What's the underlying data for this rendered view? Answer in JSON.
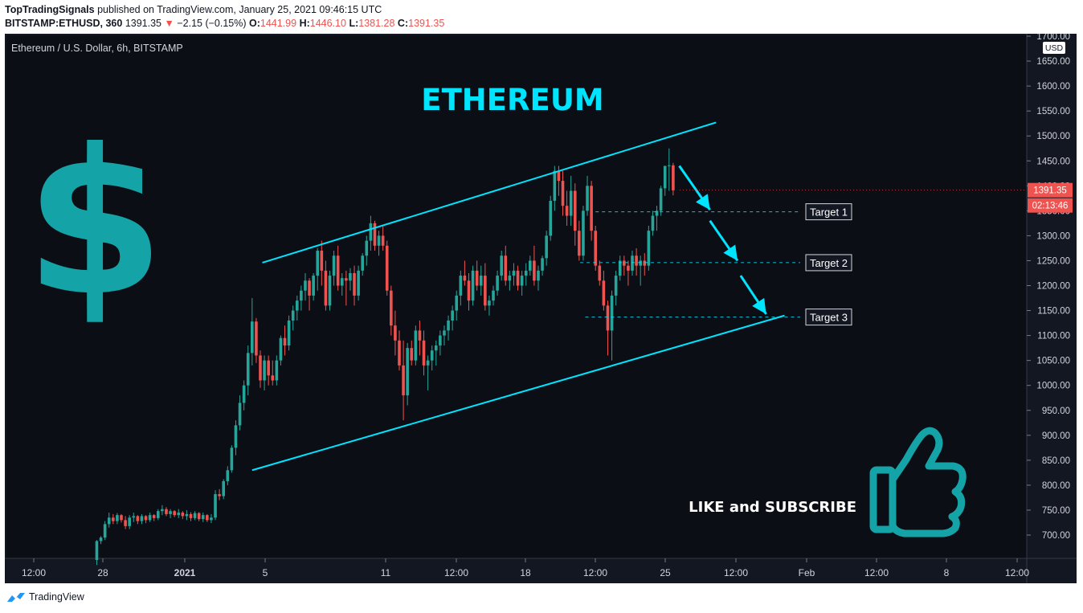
{
  "header": {
    "publisher": "TopTradingSignals",
    "published_text": "published on TradingView.com, January 25, 2021 09:46:15 UTC",
    "symbol": "BITSTAMP:ETHUSD, 360",
    "last": "1391.35",
    "change": "−2.15 (−0.15%)",
    "o_label": "O:",
    "o": "1441.99",
    "h_label": "H:",
    "h": "1446.10",
    "l_label": "L:",
    "l": "1381.28",
    "c_label": "C:",
    "c": "1391.35"
  },
  "footer": {
    "brand": "TradingView"
  },
  "chart_data": {
    "type": "candlestick",
    "title": "Ethereum / U.S. Dollar, 6h, BITSTAMP",
    "overlay_title": "ETHEREUM",
    "currency": "USD",
    "ylim": [
      650,
      1725
    ],
    "y_ticks": [
      "1700.00",
      "1650.00",
      "1600.00",
      "1550.00",
      "1500.00",
      "1450.00",
      "1400.00",
      "1350.00",
      "1300.00",
      "1250.00",
      "1200.00",
      "1150.00",
      "1100.00",
      "1050.00",
      "1000.00",
      "950.00",
      "900.00",
      "850.00",
      "800.00",
      "750.00",
      "700.00"
    ],
    "x_ticks": [
      "12:00",
      "28",
      "2021",
      "5",
      "11",
      "12:00",
      "18",
      "12:00",
      "25",
      "12:00",
      "Feb",
      "12:00",
      "8",
      "12:00"
    ],
    "x_ticks_bold": [
      "2021"
    ],
    "last_price_label": "1391.35",
    "countdown_label": "02:13:46",
    "targets": [
      {
        "label": "Target 1",
        "price": 1348
      },
      {
        "label": "Target 2",
        "price": 1246
      },
      {
        "label": "Target 3",
        "price": 1137
      }
    ],
    "callout": "LIKE and SUBSCRIBE",
    "dollar_symbol": "$",
    "channel": {
      "upper": [
        [
          0.252,
          1246
        ],
        [
          0.696,
          1527
        ]
      ],
      "lower": [
        [
          0.242,
          830
        ],
        [
          0.763,
          1140
        ]
      ]
    },
    "arrows": [
      [
        [
          0.66,
          1440
        ],
        [
          0.69,
          1352
        ]
      ],
      [
        [
          0.69,
          1330
        ],
        [
          0.717,
          1250
        ]
      ],
      [
        [
          0.72,
          1220
        ],
        [
          0.745,
          1143
        ]
      ]
    ],
    "colors": {
      "up": "#26a69a",
      "down": "#ef5350",
      "accent": "#00e5ff",
      "teal": "#14a3a6",
      "bg": "#131722",
      "text": "#d1d4dc"
    },
    "candles": [
      [
        0.09,
        650,
        690,
        640,
        688
      ],
      [
        0.094,
        688,
        698,
        682,
        695
      ],
      [
        0.098,
        695,
        728,
        690,
        722
      ],
      [
        0.102,
        722,
        745,
        715,
        735
      ],
      [
        0.106,
        735,
        742,
        722,
        728
      ],
      [
        0.11,
        728,
        744,
        722,
        740
      ],
      [
        0.114,
        740,
        742,
        725,
        730
      ],
      [
        0.118,
        730,
        738,
        712,
        718
      ],
      [
        0.122,
        718,
        740,
        712,
        735
      ],
      [
        0.126,
        735,
        745,
        726,
        738
      ],
      [
        0.13,
        738,
        740,
        722,
        728
      ],
      [
        0.134,
        728,
        742,
        722,
        738
      ],
      [
        0.138,
        738,
        740,
        724,
        730
      ],
      [
        0.142,
        730,
        745,
        726,
        740
      ],
      [
        0.146,
        740,
        742,
        728,
        734
      ],
      [
        0.15,
        734,
        752,
        730,
        748
      ],
      [
        0.154,
        748,
        760,
        740,
        752
      ],
      [
        0.158,
        752,
        756,
        738,
        742
      ],
      [
        0.162,
        742,
        752,
        734,
        748
      ],
      [
        0.166,
        748,
        750,
        736,
        740
      ],
      [
        0.17,
        740,
        752,
        734,
        745
      ],
      [
        0.174,
        745,
        748,
        732,
        738
      ],
      [
        0.178,
        738,
        750,
        730,
        742
      ],
      [
        0.182,
        742,
        746,
        728,
        734
      ],
      [
        0.186,
        734,
        748,
        730,
        744
      ],
      [
        0.19,
        744,
        746,
        728,
        732
      ],
      [
        0.194,
        732,
        745,
        726,
        740
      ],
      [
        0.198,
        740,
        742,
        726,
        730
      ],
      [
        0.202,
        730,
        742,
        724,
        735
      ],
      [
        0.206,
        735,
        790,
        730,
        782
      ],
      [
        0.21,
        782,
        792,
        770,
        778
      ],
      [
        0.214,
        778,
        812,
        772,
        808
      ],
      [
        0.218,
        808,
        838,
        800,
        830
      ],
      [
        0.222,
        830,
        880,
        825,
        875
      ],
      [
        0.226,
        875,
        930,
        860,
        920
      ],
      [
        0.23,
        920,
        980,
        910,
        965
      ],
      [
        0.234,
        965,
        1010,
        950,
        1000
      ],
      [
        0.238,
        1000,
        1080,
        980,
        1065
      ],
      [
        0.242,
        1065,
        1175,
        1040,
        1128
      ],
      [
        0.246,
        1128,
        1135,
        1045,
        1060
      ],
      [
        0.25,
        1060,
        1070,
        995,
        1010
      ],
      [
        0.254,
        1010,
        1060,
        990,
        1050
      ],
      [
        0.258,
        1050,
        1060,
        1000,
        1020
      ],
      [
        0.262,
        1020,
        1050,
        1000,
        1010
      ],
      [
        0.266,
        1010,
        1060,
        1000,
        1050
      ],
      [
        0.27,
        1050,
        1100,
        1040,
        1095
      ],
      [
        0.274,
        1095,
        1120,
        1060,
        1080
      ],
      [
        0.278,
        1080,
        1140,
        1070,
        1130
      ],
      [
        0.282,
        1130,
        1160,
        1110,
        1150
      ],
      [
        0.286,
        1150,
        1180,
        1130,
        1170
      ],
      [
        0.29,
        1170,
        1200,
        1150,
        1190
      ],
      [
        0.294,
        1190,
        1225,
        1170,
        1210
      ],
      [
        0.298,
        1210,
        1215,
        1150,
        1180
      ],
      [
        0.302,
        1180,
        1225,
        1170,
        1220
      ],
      [
        0.306,
        1220,
        1275,
        1190,
        1270
      ],
      [
        0.31,
        1270,
        1290,
        1200,
        1230
      ],
      [
        0.314,
        1230,
        1250,
        1150,
        1160
      ],
      [
        0.318,
        1160,
        1230,
        1150,
        1220
      ],
      [
        0.322,
        1220,
        1270,
        1200,
        1260
      ],
      [
        0.326,
        1260,
        1280,
        1190,
        1200
      ],
      [
        0.33,
        1200,
        1225,
        1180,
        1215
      ],
      [
        0.334,
        1215,
        1230,
        1160,
        1210
      ],
      [
        0.338,
        1210,
        1235,
        1190,
        1225
      ],
      [
        0.342,
        1225,
        1240,
        1160,
        1180
      ],
      [
        0.346,
        1180,
        1240,
        1170,
        1230
      ],
      [
        0.35,
        1230,
        1265,
        1220,
        1260
      ],
      [
        0.354,
        1260,
        1300,
        1240,
        1290
      ],
      [
        0.358,
        1290,
        1340,
        1270,
        1325
      ],
      [
        0.362,
        1325,
        1330,
        1270,
        1280
      ],
      [
        0.366,
        1280,
        1310,
        1260,
        1300
      ],
      [
        0.37,
        1300,
        1320,
        1270,
        1280
      ],
      [
        0.374,
        1280,
        1290,
        1180,
        1190
      ],
      [
        0.378,
        1190,
        1200,
        1100,
        1120
      ],
      [
        0.382,
        1120,
        1150,
        1060,
        1090
      ],
      [
        0.386,
        1090,
        1110,
        1030,
        1040
      ],
      [
        0.39,
        1040,
        1090,
        930,
        980
      ],
      [
        0.394,
        980,
        1085,
        960,
        1075
      ],
      [
        0.398,
        1075,
        1090,
        1040,
        1050
      ],
      [
        0.402,
        1050,
        1120,
        1040,
        1110
      ],
      [
        0.406,
        1110,
        1130,
        1060,
        1090
      ],
      [
        0.41,
        1090,
        1110,
        1020,
        1040
      ],
      [
        0.414,
        1040,
        1060,
        990,
        1050
      ],
      [
        0.418,
        1050,
        1080,
        1030,
        1070
      ],
      [
        0.422,
        1070,
        1090,
        1040,
        1080
      ],
      [
        0.426,
        1080,
        1110,
        1060,
        1100
      ],
      [
        0.43,
        1100,
        1120,
        1080,
        1110
      ],
      [
        0.434,
        1110,
        1140,
        1090,
        1130
      ],
      [
        0.438,
        1130,
        1160,
        1110,
        1150
      ],
      [
        0.442,
        1150,
        1190,
        1130,
        1180
      ],
      [
        0.446,
        1180,
        1230,
        1160,
        1220
      ],
      [
        0.45,
        1220,
        1250,
        1200,
        1210
      ],
      [
        0.454,
        1210,
        1225,
        1150,
        1170
      ],
      [
        0.458,
        1170,
        1240,
        1160,
        1230
      ],
      [
        0.462,
        1230,
        1250,
        1190,
        1200
      ],
      [
        0.466,
        1200,
        1240,
        1180,
        1220
      ],
      [
        0.47,
        1220,
        1245,
        1150,
        1160
      ],
      [
        0.474,
        1160,
        1180,
        1140,
        1170
      ],
      [
        0.478,
        1170,
        1200,
        1160,
        1190
      ],
      [
        0.482,
        1190,
        1230,
        1180,
        1220
      ],
      [
        0.486,
        1220,
        1270,
        1210,
        1260
      ],
      [
        0.49,
        1260,
        1280,
        1200,
        1210
      ],
      [
        0.494,
        1210,
        1230,
        1190,
        1220
      ],
      [
        0.498,
        1220,
        1245,
        1200,
        1230
      ],
      [
        0.502,
        1230,
        1240,
        1190,
        1200
      ],
      [
        0.506,
        1200,
        1230,
        1180,
        1220
      ],
      [
        0.51,
        1220,
        1245,
        1200,
        1230
      ],
      [
        0.514,
        1230,
        1260,
        1220,
        1250
      ],
      [
        0.518,
        1250,
        1280,
        1200,
        1210
      ],
      [
        0.522,
        1210,
        1240,
        1190,
        1230
      ],
      [
        0.526,
        1230,
        1260,
        1220,
        1255
      ],
      [
        0.53,
        1255,
        1310,
        1240,
        1300
      ],
      [
        0.534,
        1300,
        1380,
        1290,
        1370
      ],
      [
        0.538,
        1370,
        1440,
        1350,
        1430
      ],
      [
        0.542,
        1430,
        1440,
        1380,
        1410
      ],
      [
        0.546,
        1410,
        1430,
        1340,
        1360
      ],
      [
        0.55,
        1360,
        1390,
        1320,
        1340
      ],
      [
        0.554,
        1340,
        1420,
        1320,
        1390
      ],
      [
        0.558,
        1390,
        1405,
        1280,
        1310
      ],
      [
        0.562,
        1310,
        1330,
        1250,
        1260
      ],
      [
        0.566,
        1260,
        1360,
        1250,
        1350
      ],
      [
        0.57,
        1350,
        1420,
        1340,
        1400
      ],
      [
        0.574,
        1400,
        1410,
        1290,
        1310
      ],
      [
        0.578,
        1310,
        1320,
        1230,
        1240
      ],
      [
        0.582,
        1240,
        1250,
        1200,
        1210
      ],
      [
        0.586,
        1210,
        1230,
        1150,
        1160
      ],
      [
        0.59,
        1160,
        1170,
        1060,
        1110
      ],
      [
        0.594,
        1110,
        1190,
        1050,
        1180
      ],
      [
        0.598,
        1180,
        1230,
        1160,
        1220
      ],
      [
        0.602,
        1220,
        1260,
        1210,
        1250
      ],
      [
        0.606,
        1250,
        1260,
        1220,
        1240
      ],
      [
        0.61,
        1240,
        1250,
        1200,
        1230
      ],
      [
        0.614,
        1230,
        1270,
        1220,
        1260
      ],
      [
        0.618,
        1260,
        1275,
        1220,
        1240
      ],
      [
        0.622,
        1240,
        1260,
        1200,
        1250
      ],
      [
        0.626,
        1250,
        1265,
        1220,
        1240
      ],
      [
        0.63,
        1240,
        1320,
        1230,
        1310
      ],
      [
        0.634,
        1310,
        1350,
        1300,
        1340
      ],
      [
        0.638,
        1340,
        1360,
        1310,
        1350
      ],
      [
        0.642,
        1350,
        1400,
        1340,
        1395
      ],
      [
        0.646,
        1395,
        1430,
        1380,
        1440
      ],
      [
        0.65,
        1440,
        1475,
        1390,
        1441
      ],
      [
        0.654,
        1441,
        1446,
        1381,
        1391
      ]
    ]
  }
}
